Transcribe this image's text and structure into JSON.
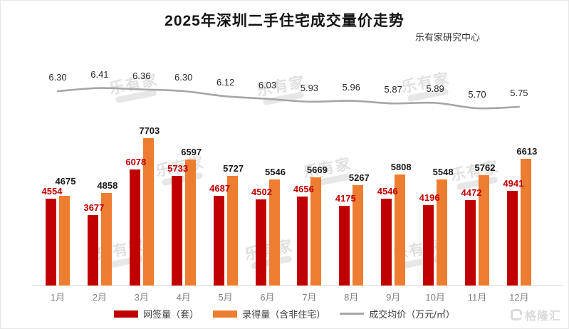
{
  "title": "2025年深圳二手住宅成交量价走势",
  "source": "乐有家研究中心",
  "watermark_text": "乐有家",
  "footer_logo_text": "格隆汇",
  "colors": {
    "signed_bar": "#C00000",
    "recorded_bar": "#ED7D31",
    "price_line": "#A6A6A6",
    "axis": "#D9D9D9"
  },
  "chart_data": {
    "type": "bar",
    "title": "2025年深圳二手住宅成交量价走势",
    "categories": [
      "1月",
      "2月",
      "3月",
      "4月",
      "5月",
      "6月",
      "7月",
      "8月",
      "9月",
      "10月",
      "11月",
      "12月"
    ],
    "series": [
      {
        "name": "网签量（套）",
        "type": "bar",
        "color": "#C00000",
        "values": [
          4554,
          3677,
          6078,
          5733,
          4687,
          4502,
          4656,
          4175,
          4546,
          4196,
          4472,
          4941
        ]
      },
      {
        "name": "录得量（含非住宅）",
        "type": "bar",
        "color": "#ED7D31",
        "values": [
          4675,
          4858,
          7703,
          6597,
          5727,
          5546,
          5669,
          5267,
          5808,
          5548,
          5762,
          6613
        ]
      },
      {
        "name": "成交均价（万元/㎡）",
        "type": "line",
        "color": "#A6A6A6",
        "values": [
          6.3,
          6.41,
          6.36,
          6.3,
          6.12,
          6.03,
          5.93,
          5.96,
          5.87,
          5.89,
          5.7,
          5.75
        ],
        "decimals": 2
      }
    ],
    "bar_ylim": [
      0,
      8300
    ],
    "line_ylim": [
      5.6,
      6.6
    ],
    "grid": false,
    "legend_position": "bottom"
  }
}
